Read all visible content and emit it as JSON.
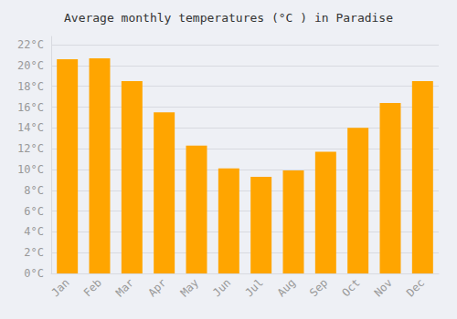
{
  "chart_data": {
    "type": "bar",
    "title": "Average monthly temperatures (°C ) in Paradise",
    "categories": [
      "Jan",
      "Feb",
      "Mar",
      "Apr",
      "May",
      "Jun",
      "Jul",
      "Aug",
      "Sep",
      "Oct",
      "Nov",
      "Dec"
    ],
    "values": [
      20.6,
      20.7,
      18.5,
      15.5,
      12.3,
      10.1,
      9.3,
      9.9,
      11.7,
      14.0,
      16.4,
      18.5
    ],
    "color": "#FFA500",
    "ylim": [
      0,
      22.8
    ],
    "yticks": [
      {
        "value": 0,
        "label": "0°C"
      },
      {
        "value": 2,
        "label": "2°C"
      },
      {
        "value": 4,
        "label": "4°C"
      },
      {
        "value": 6,
        "label": "6°C"
      },
      {
        "value": 8,
        "label": "8°C"
      },
      {
        "value": 10,
        "label": "10°C"
      },
      {
        "value": 12,
        "label": "12°C"
      },
      {
        "value": 14,
        "label": "14°C"
      },
      {
        "value": 16,
        "label": "16°C"
      },
      {
        "value": 18,
        "label": "18°C"
      },
      {
        "value": 20,
        "label": "20°C"
      },
      {
        "value": 22,
        "label": "22°C"
      }
    ],
    "grid": true
  }
}
